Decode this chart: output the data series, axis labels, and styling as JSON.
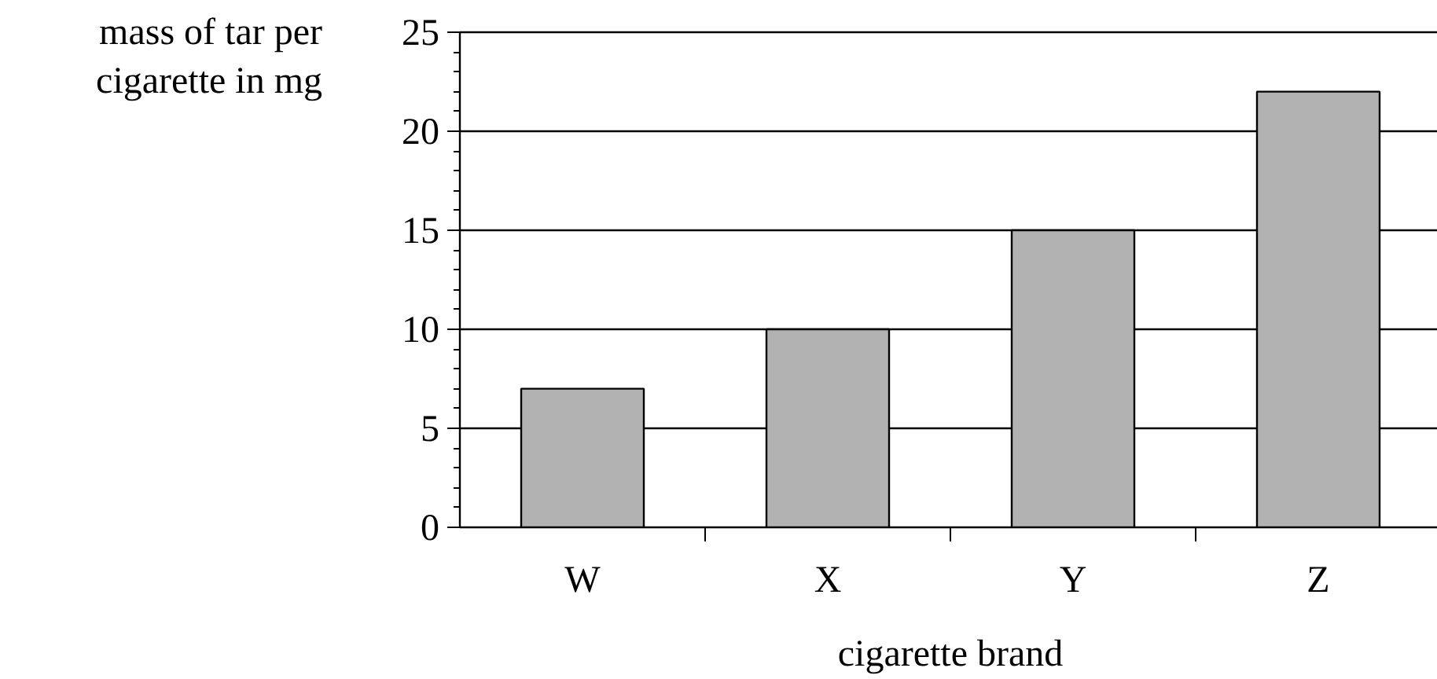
{
  "chart_data": {
    "type": "bar",
    "xlabel": "cigarette brand",
    "ylabel": "mass of tar per cigarette in mg",
    "categories": [
      "W",
      "X",
      "Y",
      "Z"
    ],
    "values": [
      7,
      10,
      15,
      22
    ],
    "color": "#b2b2b2",
    "ylim": [
      0,
      25
    ],
    "yticks": [
      0,
      5,
      10,
      15,
      20,
      25
    ],
    "grid": "y"
  }
}
